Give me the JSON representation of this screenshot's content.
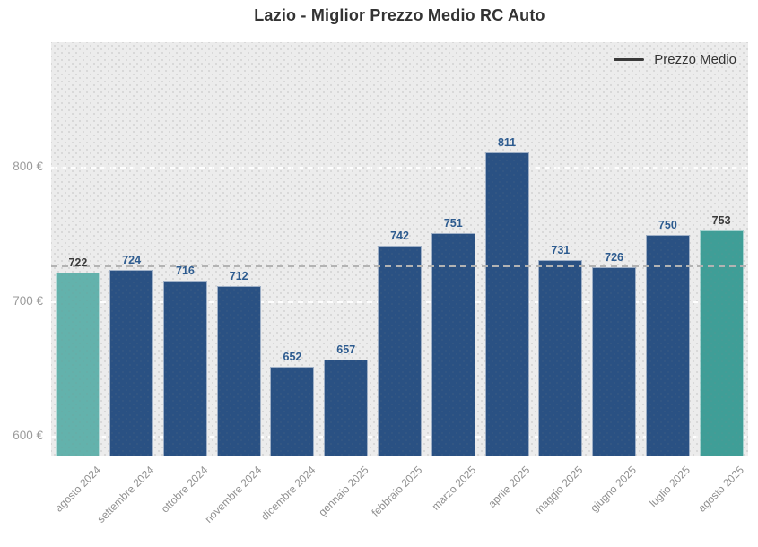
{
  "chart_data": {
    "type": "bar",
    "title": "Lazio - Miglior Prezzo Medio RC Auto",
    "unit": "€",
    "categories": [
      "agosto 2024",
      "settembre 2024",
      "ottobre 2024",
      "novembre 2024",
      "dicembre 2024",
      "gennaio 2025",
      "febbraio 2025",
      "marzo 2025",
      "aprile 2025",
      "maggio 2025",
      "giugno 2025",
      "luglio 2025",
      "agosto 2025"
    ],
    "values": [
      722,
      724,
      716,
      712,
      652,
      657,
      742,
      751,
      811,
      731,
      726,
      750,
      753
    ],
    "y_ticks": [
      600,
      700,
      800
    ],
    "y_tick_labels": [
      "600 €",
      "700 €",
      "800 €"
    ],
    "ylim": [
      586,
      893
    ],
    "grid": "horizontal-dashed-white",
    "average_line_value": 726.7,
    "legend": {
      "position": "top-right",
      "label": "Prezzo Medio"
    },
    "highlighted_categories": [
      "agosto 2024",
      "agosto 2025"
    ]
  },
  "colors": {
    "bar_default": "#2a5183",
    "bar_first": "#63b2ac",
    "bar_last": "#3f9e97",
    "value_label_default": "#2d5b8f",
    "value_label_highlight": "#3a3a3a",
    "plot_background": "#ececec",
    "gridline": "#ffffff",
    "average_line": "#b3b3b3",
    "axis_tick_label": "#8f8f8f",
    "title_text": "#333333",
    "legend_text": "#333333"
  }
}
